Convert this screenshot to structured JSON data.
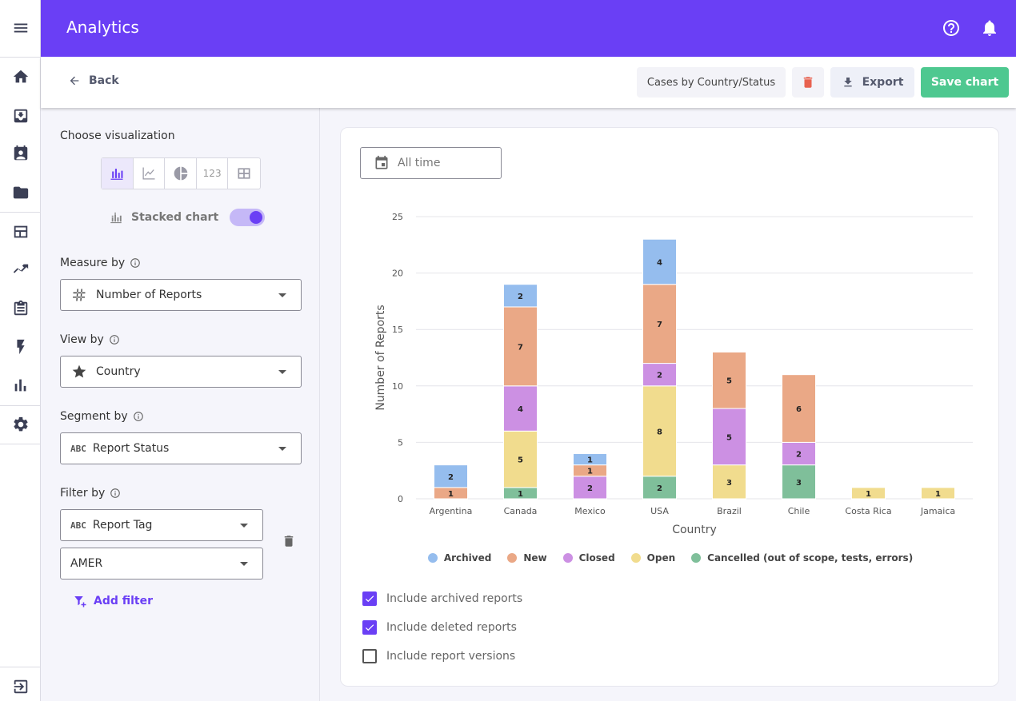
{
  "header": {
    "title": "Analytics"
  },
  "subheader": {
    "back_label": "Back",
    "chart_name": "Cases by Country/Status",
    "export_label": "Export",
    "save_label": "Save chart"
  },
  "panel": {
    "choose_visualization": "Choose visualization",
    "viz_number_label": "123",
    "stacked_label": "Stacked chart",
    "stacked_on": true,
    "measure_label": "Measure by",
    "measure_value": "Number of Reports",
    "view_label": "View by",
    "view_value": "Country",
    "segment_label": "Segment by",
    "segment_value": "Report Status",
    "filter_label": "Filter by",
    "filter_field": "Report Tag",
    "filter_value": "AMER",
    "add_filter": "Add filter",
    "abc_glyph": "ABC"
  },
  "card": {
    "date_range": "All time",
    "checkboxes": [
      {
        "label": "Include archived reports",
        "checked": true
      },
      {
        "label": "Include deleted reports",
        "checked": true
      },
      {
        "label": "Include report versions",
        "checked": false
      }
    ]
  },
  "colors": {
    "accent": "#6a3ff5",
    "save": "#4ec890",
    "delete": "#e8624f"
  },
  "chart_data": {
    "type": "bar",
    "stacked": true,
    "categories": [
      "Argentina",
      "Canada",
      "Mexico",
      "USA",
      "Brazil",
      "Chile",
      "Costa Rica",
      "Jamaica"
    ],
    "series": [
      {
        "name": "Cancelled (out of scope, tests, errors)",
        "color": "#7fbf9a",
        "values": [
          0,
          1,
          0,
          2,
          0,
          3,
          0,
          0
        ]
      },
      {
        "name": "Open",
        "color": "#f1dc8e",
        "values": [
          0,
          5,
          0,
          8,
          3,
          0,
          1,
          1
        ]
      },
      {
        "name": "Closed",
        "color": "#cc90e3",
        "values": [
          0,
          4,
          2,
          2,
          5,
          2,
          0,
          0
        ]
      },
      {
        "name": "New",
        "color": "#eaa886",
        "values": [
          1,
          7,
          1,
          7,
          5,
          6,
          0,
          0
        ]
      },
      {
        "name": "Archived",
        "color": "#95bdee",
        "values": [
          2,
          2,
          1,
          4,
          0,
          0,
          0,
          0
        ]
      }
    ],
    "labeled_hidden": {
      "New": [
        1
      ]
    },
    "legend_order": [
      "Archived",
      "New",
      "Closed",
      "Open",
      "Cancelled (out of scope, tests, errors)"
    ],
    "xlabel": "Country",
    "ylabel": "Number of Reports",
    "yticks": [
      0,
      5,
      10,
      15,
      20,
      25
    ],
    "ylim": [
      0,
      25
    ],
    "grid": true
  }
}
